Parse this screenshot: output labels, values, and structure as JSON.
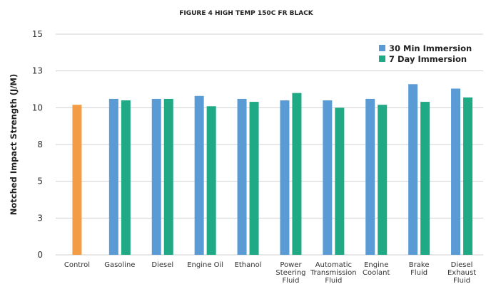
{
  "chart_data": {
    "type": "bar",
    "title": "FIGURE 4 HIGH TEMP 150C FR BLACK",
    "ylabel": "Notched Impact Strength (J/M)",
    "xlabel": "",
    "ylim": [
      0,
      15
    ],
    "yticks": [
      "0",
      "3",
      "5",
      "8",
      "10",
      "13",
      "15"
    ],
    "grid": true,
    "legend_position": "top-right",
    "categories": [
      [
        "Control"
      ],
      [
        "Gasoline"
      ],
      [
        "Diesel"
      ],
      [
        "Engine Oil"
      ],
      [
        "Ethanol"
      ],
      [
        "Power",
        "Steering",
        "Fluid"
      ],
      [
        "Automatic",
        "Transmission",
        "Fluid"
      ],
      [
        "Engine",
        "Coolant"
      ],
      [
        "Brake",
        "Fluid"
      ],
      [
        "Diesel",
        "Exhaust",
        "Fluid"
      ]
    ],
    "control": {
      "value": 10.2,
      "color": "#F39C45"
    },
    "series": [
      {
        "name": "30 Min Immersion",
        "color": "#5B9BD5",
        "values": [
          null,
          10.6,
          10.6,
          10.8,
          10.6,
          10.5,
          10.5,
          10.6,
          11.6,
          11.3
        ]
      },
      {
        "name": "7 Day Immersion",
        "color": "#1FAA85",
        "values": [
          null,
          10.5,
          10.6,
          10.1,
          10.4,
          11.0,
          10.0,
          10.2,
          10.4,
          10.7
        ]
      }
    ]
  }
}
